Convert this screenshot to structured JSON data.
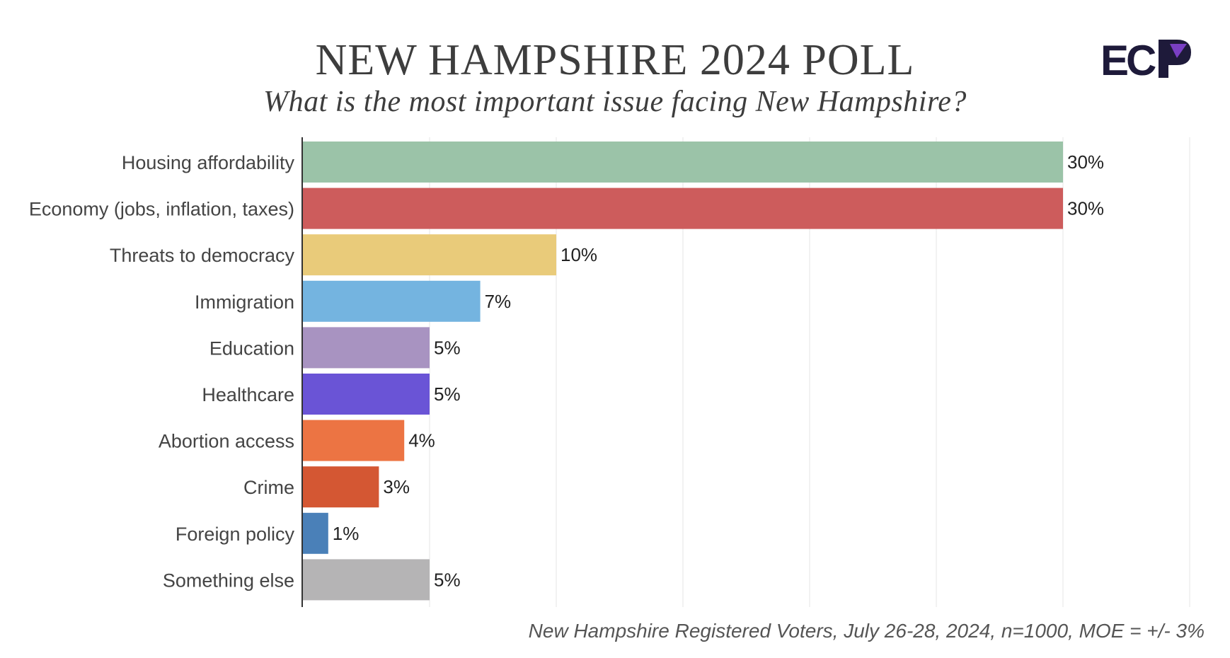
{
  "header": {
    "title": "NEW HAMPSHIRE 2024 POLL",
    "subtitle": "What is the most important issue facing New Hampshire?",
    "logo_text": "ECP",
    "logo_colors": {
      "primary": "#1e1a3a",
      "accent": "#7a3fc4"
    }
  },
  "chart_data": {
    "type": "bar",
    "orientation": "horizontal",
    "categories": [
      "Housing affordability",
      "Economy (jobs, inflation, taxes)",
      "Threats to democracy",
      "Immigration",
      "Education",
      "Healthcare",
      "Abortion access",
      "Crime",
      "Foreign policy",
      "Something else"
    ],
    "values": [
      30,
      30,
      10,
      7,
      5,
      5,
      4,
      3,
      1,
      5
    ],
    "value_labels": [
      "30%",
      "30%",
      "10%",
      "7%",
      "5%",
      "5%",
      "4%",
      "3%",
      "1%",
      "5%"
    ],
    "colors": [
      "#9bc3a8",
      "#cd5c5c",
      "#e9cb7a",
      "#74b4e0",
      "#a893c1",
      "#6a54d6",
      "#ec7443",
      "#d45733",
      "#4a80b8",
      "#b5b4b5"
    ],
    "xlim": [
      0,
      35
    ],
    "grid": true,
    "title": "NEW HAMPSHIRE 2024 POLL",
    "subtitle": "What is the most important issue facing New Hampshire?",
    "xlabel": "",
    "ylabel": ""
  },
  "footer": {
    "note": "New Hampshire Registered Voters, July 26-28, 2024, n=1000, MOE = +/- 3%"
  }
}
